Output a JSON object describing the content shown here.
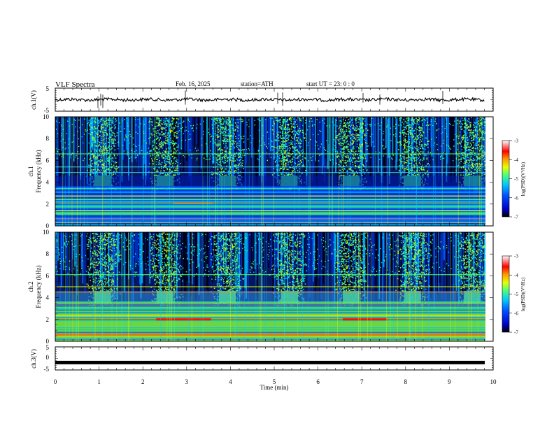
{
  "header": {
    "title": "VLF  Spectra",
    "date": "Feb. 16, 2025",
    "station": "station=ATH",
    "start": "start  UT  =   23: 0  : 0"
  },
  "chart_data": [
    {
      "type": "line",
      "id": "ch1-waveform",
      "ylabel": "ch.1(V)",
      "ylim": [
        -5,
        5
      ],
      "yticks": [
        "5",
        "-5"
      ],
      "xlim": [
        0,
        10
      ],
      "note_level": 0
    },
    {
      "type": "heatmap",
      "id": "ch1-spectrogram",
      "ylabel": "ch.1\nFrequency  (kHz)",
      "ylabel_lines": [
        "ch.1",
        "Frequency  (kHz)"
      ],
      "ylim": [
        0,
        10
      ],
      "yticks": [
        "0",
        "2",
        "4",
        "6",
        "8",
        "10"
      ],
      "xlim": [
        0,
        9.8
      ],
      "burst_centers_min": [
        1.08,
        2.5,
        3.92,
        5.33,
        6.74,
        8.14,
        9.5
      ],
      "tone_band_khz": [
        3.5,
        4.6
      ],
      "colorbar": {
        "label": "log(PSD)(V²/Hz)",
        "range": [
          -7,
          -3
        ],
        "ticks": [
          "-3",
          "-4",
          "-5",
          "-6",
          "-7"
        ]
      }
    },
    {
      "type": "heatmap",
      "id": "ch2-spectrogram",
      "ylabel": "ch.2\nFrequency  (kHz)",
      "ylabel_lines": [
        "ch.2",
        "Frequency  (kHz)"
      ],
      "ylim": [
        0,
        10
      ],
      "yticks": [
        "0",
        "2",
        "4",
        "6",
        "8",
        "10"
      ],
      "xlim": [
        0,
        9.8
      ],
      "burst_centers_min": [
        1.08,
        2.5,
        3.92,
        5.33,
        6.74,
        8.14,
        9.5
      ],
      "tone_band_khz": [
        3.5,
        4.6
      ],
      "colorbar": {
        "label": "log(PSD)(V²/Hz)",
        "range": [
          -7,
          -3
        ],
        "ticks": [
          "-3",
          "-4",
          "-5",
          "-6",
          "-7"
        ]
      }
    },
    {
      "type": "line",
      "id": "ch3-waveform",
      "ylabel": "ch.3(V)",
      "ylim": [
        -5,
        5
      ],
      "yticks": [
        "5",
        "0",
        "-5"
      ],
      "xlim": [
        0,
        10
      ],
      "level": -1.8,
      "xlabel": "Time  (min)",
      "xticks": [
        "0",
        "1",
        "2",
        "3",
        "4",
        "5",
        "6",
        "7",
        "8",
        "9",
        "10"
      ]
    }
  ],
  "colors": {
    "spectrogram_bg": "#08185a",
    "colormap": [
      "#000000",
      "#0000c8",
      "#0050ff",
      "#00c8ff",
      "#50ff78",
      "#e6ff00",
      "#ff9600",
      "#ff0000",
      "#ffffff"
    ]
  }
}
